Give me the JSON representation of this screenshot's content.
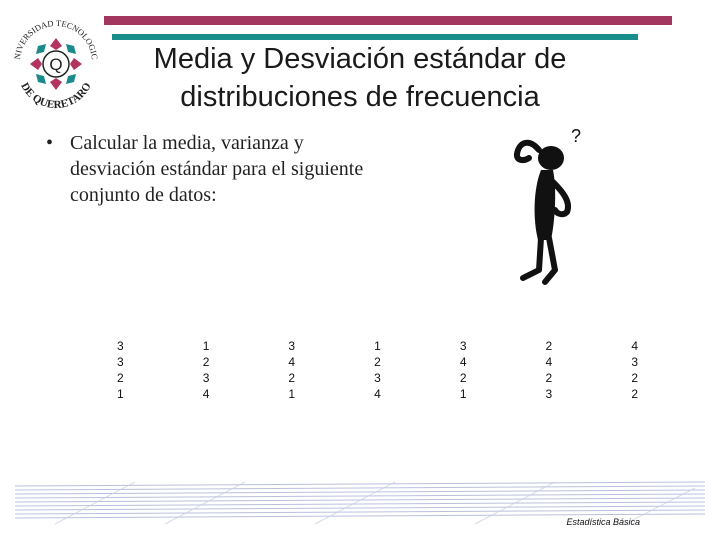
{
  "logo": {
    "top_text": "UNIVERSIDAD TECNOLOGICA",
    "bottom_text": "DE QUERETARO",
    "center_letter": "Q"
  },
  "slide": {
    "title_line1": "Media y Desviación estándar de",
    "title_line2": "distribuciones de frecuencia",
    "bullet_symbol": "•",
    "bullet_text": "Calcular la media, varianza y desviación estándar para el siguiente conjunto de datos:"
  },
  "figure": {
    "icon": "thinking-stick-figure-icon",
    "question_mark": "?"
  },
  "data_table": {
    "rows": [
      [
        "3",
        "1",
        "3",
        "1",
        "3",
        "2",
        "4"
      ],
      [
        "3",
        "2",
        "4",
        "2",
        "4",
        "4",
        "3"
      ],
      [
        "2",
        "3",
        "2",
        "3",
        "2",
        "2",
        "2"
      ],
      [
        "1",
        "4",
        "1",
        "4",
        "1",
        "3",
        "2"
      ]
    ]
  },
  "footer": {
    "label": "Estadística Básica"
  },
  "colors": {
    "accent_bar": "#a3365f",
    "teal_bar": "#1a8d8d"
  }
}
